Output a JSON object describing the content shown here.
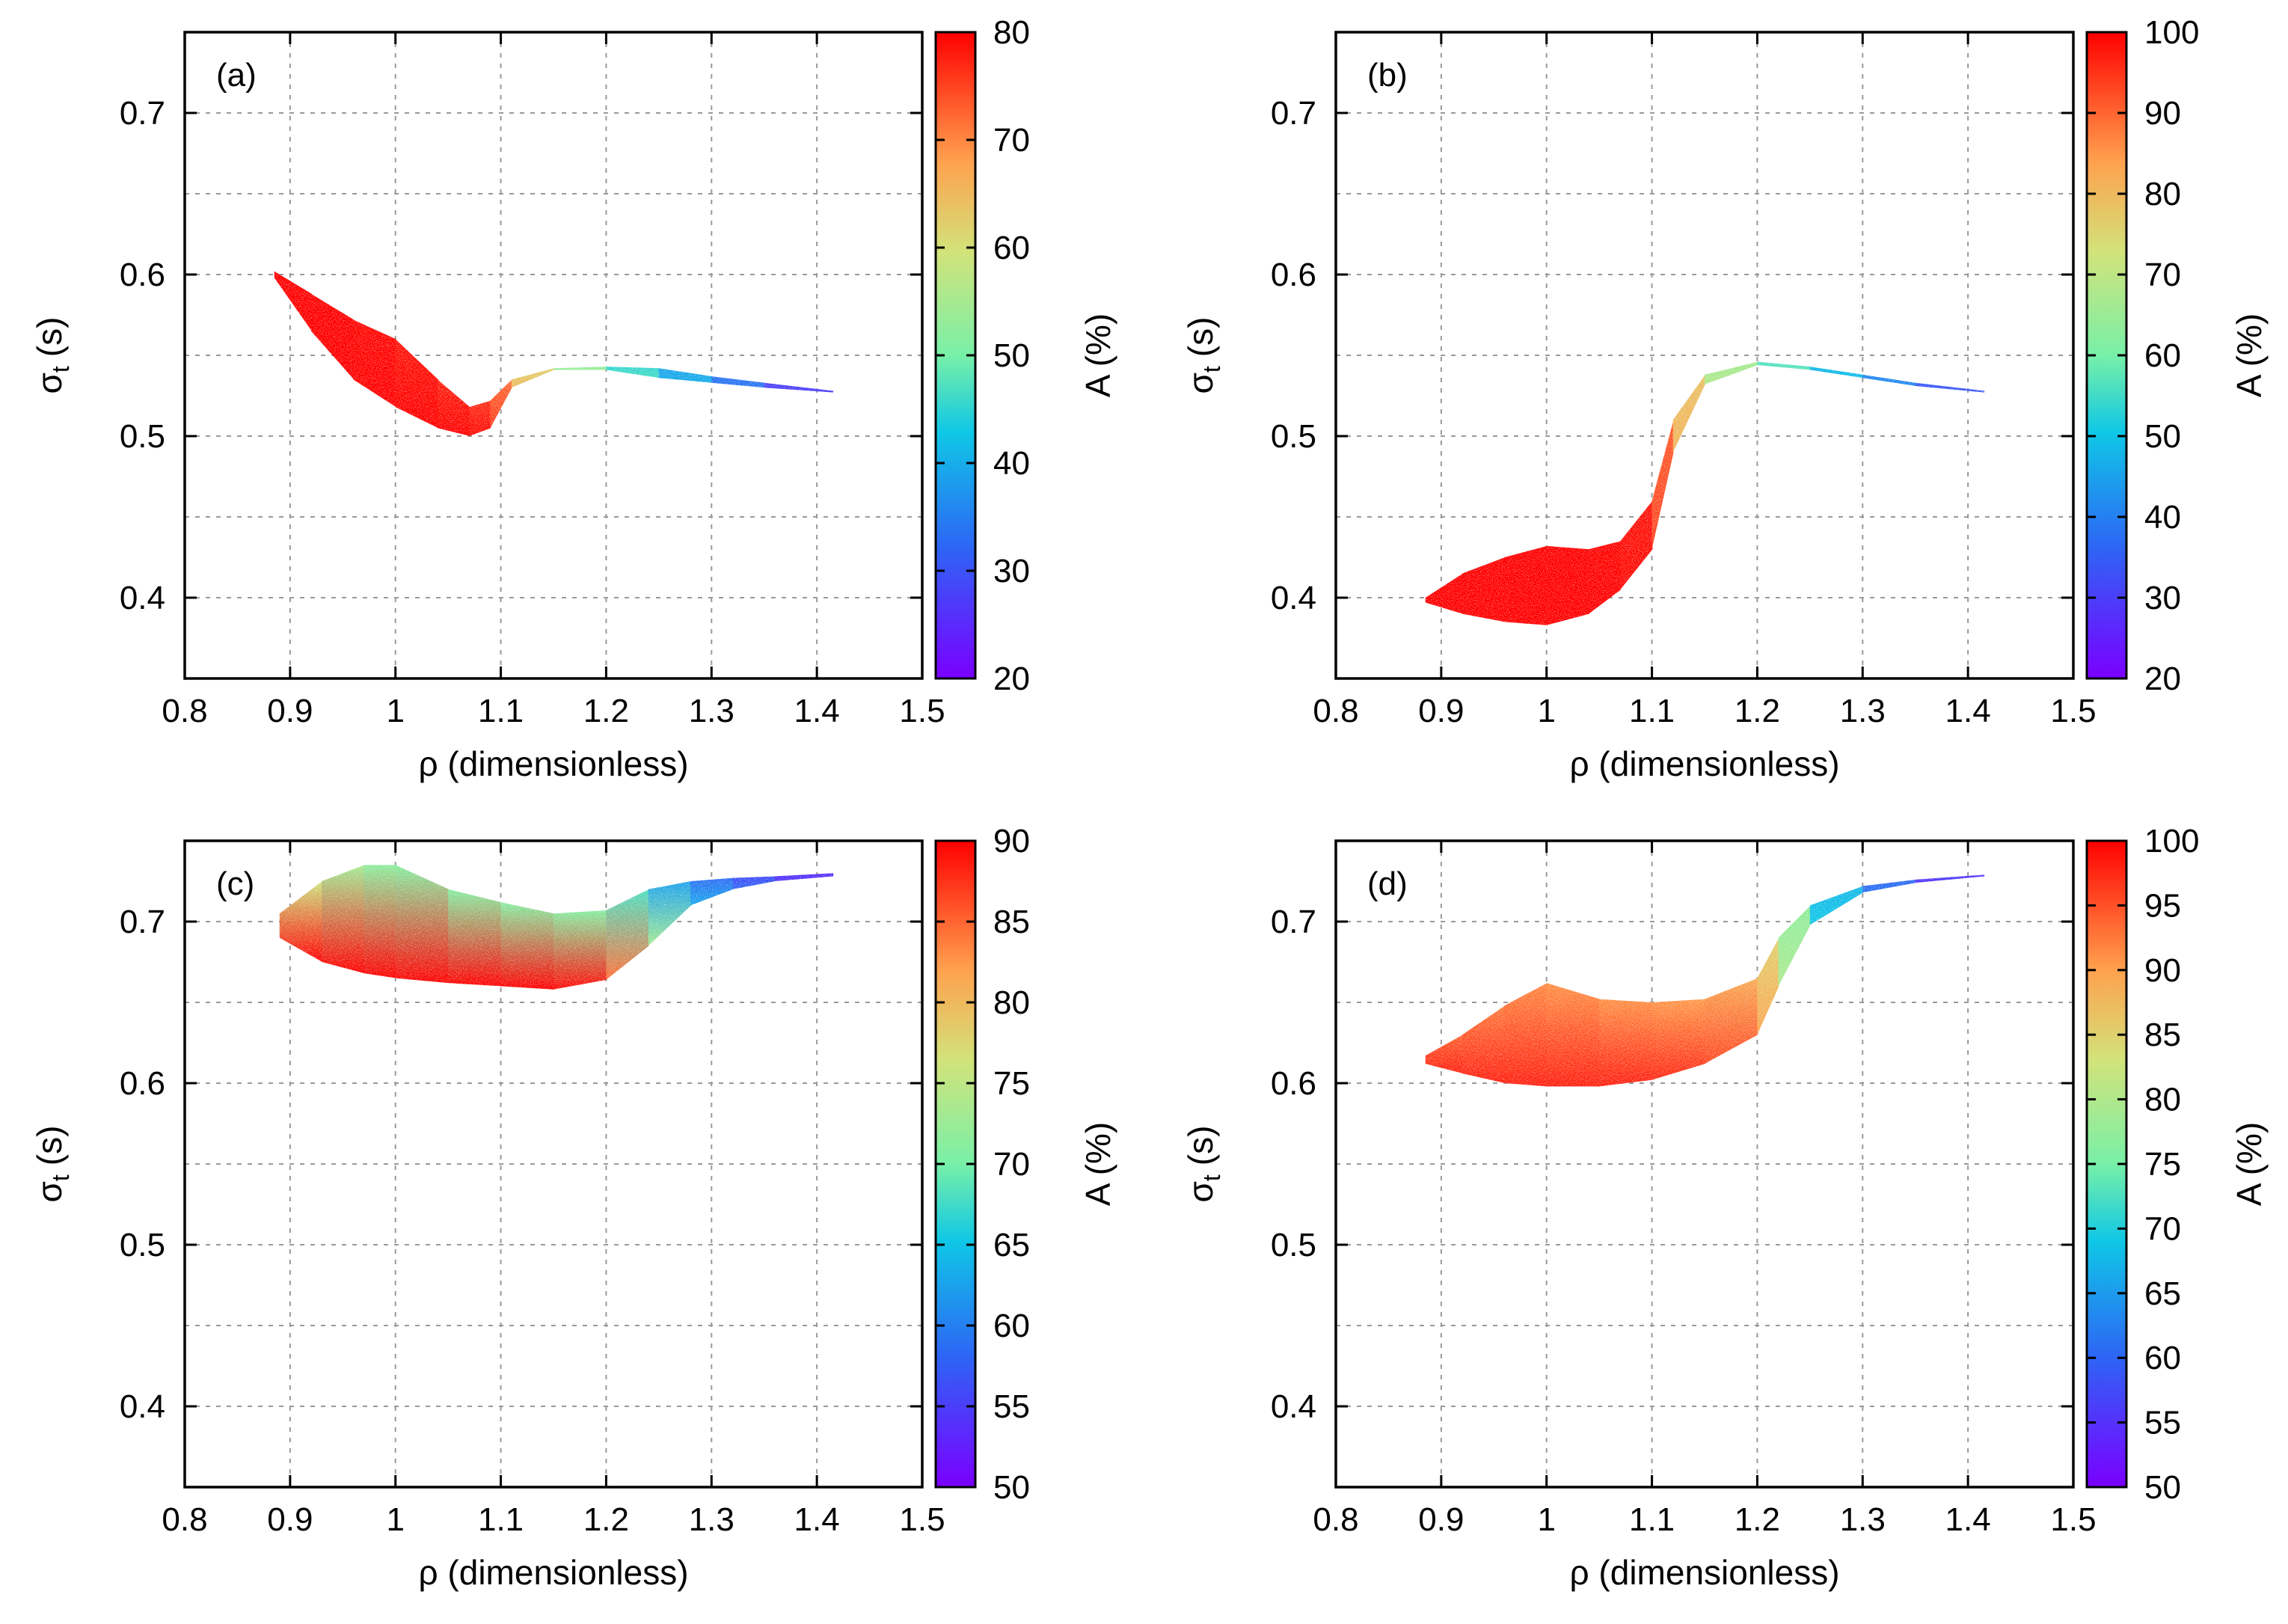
{
  "chart_data": [
    {
      "type": "scatter",
      "panel": "(a)",
      "xlabel": "ρ (dimensionless)",
      "ylabel_main": "σ",
      "ylabel_sub": "t",
      "ylabel_unit": "(s)",
      "xlim": [
        0.8,
        1.5
      ],
      "ylim": [
        0.35,
        0.75
      ],
      "xticks": [
        "0.8",
        "0.9",
        "1",
        "1.1",
        "1.2",
        "1.3",
        "1.4",
        "1.5"
      ],
      "yticks": [
        "0.4",
        "0.5",
        "0.6",
        "0.7"
      ],
      "colorbar": {
        "label": "A (%)",
        "range": [
          20,
          80
        ],
        "ticks": [
          "20",
          "30",
          "40",
          "50",
          "60",
          "70",
          "80"
        ]
      },
      "band": {
        "rho": [
          0.885,
          0.92,
          0.96,
          1.0,
          1.04,
          1.07,
          1.09,
          1.11,
          1.15,
          1.2,
          1.25,
          1.3,
          1.35,
          1.415
        ],
        "upper": [
          0.602,
          0.588,
          0.572,
          0.56,
          0.535,
          0.518,
          0.522,
          0.535,
          0.542,
          0.543,
          0.542,
          0.537,
          0.533,
          0.528
        ],
        "lower": [
          0.598,
          0.565,
          0.535,
          0.518,
          0.505,
          0.5,
          0.505,
          0.53,
          0.541,
          0.541,
          0.536,
          0.533,
          0.53,
          0.527
        ],
        "a_top": [
          80,
          80,
          80,
          79,
          78,
          77,
          76,
          68,
          56,
          49,
          42,
          36,
          31,
          24
        ],
        "a_bottom": [
          80,
          80,
          80,
          80,
          80,
          80,
          79,
          72,
          58,
          50,
          43,
          37,
          31,
          24
        ]
      }
    },
    {
      "type": "scatter",
      "panel": "(b)",
      "xlabel": "ρ (dimensionless)",
      "ylabel_main": "σ",
      "ylabel_sub": "t",
      "ylabel_unit": "(s)",
      "xlim": [
        0.8,
        1.5
      ],
      "ylim": [
        0.35,
        0.75
      ],
      "xticks": [
        "0.8",
        "0.9",
        "1",
        "1.1",
        "1.2",
        "1.3",
        "1.4",
        "1.5"
      ],
      "yticks": [
        "0.4",
        "0.5",
        "0.6",
        "0.7"
      ],
      "colorbar": {
        "label": "A (%)",
        "range": [
          20,
          100
        ],
        "ticks": [
          "20",
          "30",
          "40",
          "50",
          "60",
          "70",
          "80",
          "90",
          "100"
        ]
      },
      "band": {
        "rho": [
          0.885,
          0.92,
          0.96,
          1.0,
          1.04,
          1.07,
          1.1,
          1.12,
          1.15,
          1.2,
          1.25,
          1.3,
          1.35,
          1.415
        ],
        "upper": [
          0.4,
          0.415,
          0.425,
          0.432,
          0.43,
          0.435,
          0.46,
          0.51,
          0.538,
          0.546,
          0.543,
          0.538,
          0.533,
          0.528
        ],
        "lower": [
          0.397,
          0.39,
          0.385,
          0.383,
          0.39,
          0.405,
          0.43,
          0.49,
          0.532,
          0.544,
          0.541,
          0.536,
          0.531,
          0.527
        ],
        "a_top": [
          100,
          100,
          100,
          100,
          100,
          99,
          97,
          85,
          72,
          60,
          52,
          44,
          38,
          30
        ],
        "a_bottom": [
          100,
          100,
          100,
          100,
          100,
          100,
          98,
          88,
          74,
          62,
          53,
          45,
          38,
          30
        ]
      }
    },
    {
      "type": "scatter",
      "panel": "(c)",
      "xlabel": "ρ (dimensionless)",
      "ylabel_main": "σ",
      "ylabel_sub": "t",
      "ylabel_unit": "(s)",
      "xlim": [
        0.8,
        1.5
      ],
      "ylim": [
        0.35,
        0.75
      ],
      "xticks": [
        "0.8",
        "0.9",
        "1",
        "1.1",
        "1.2",
        "1.3",
        "1.4",
        "1.5"
      ],
      "yticks": [
        "0.4",
        "0.5",
        "0.6",
        "0.7"
      ],
      "colorbar": {
        "label": "A (%)",
        "range": [
          50,
          90
        ],
        "ticks": [
          "50",
          "55",
          "60",
          "65",
          "70",
          "75",
          "80",
          "85",
          "90"
        ]
      },
      "band": {
        "rho": [
          0.89,
          0.93,
          0.97,
          1.0,
          1.05,
          1.1,
          1.15,
          1.2,
          1.24,
          1.28,
          1.32,
          1.36,
          1.415
        ],
        "upper": [
          0.705,
          0.725,
          0.735,
          0.735,
          0.72,
          0.712,
          0.705,
          0.707,
          0.72,
          0.725,
          0.727,
          0.728,
          0.73
        ],
        "lower": [
          0.69,
          0.675,
          0.668,
          0.665,
          0.662,
          0.66,
          0.658,
          0.664,
          0.685,
          0.71,
          0.72,
          0.725,
          0.728
        ],
        "a_top": [
          78,
          74,
          72,
          71,
          71,
          71,
          71,
          71,
          65,
          60,
          57,
          55,
          52
        ],
        "a_bottom": [
          90,
          90,
          90,
          90,
          90,
          90,
          90,
          89,
          80,
          66,
          60,
          56,
          53
        ]
      }
    },
    {
      "type": "scatter",
      "panel": "(d)",
      "xlabel": "ρ (dimensionless)",
      "ylabel_main": "σ",
      "ylabel_sub": "t",
      "ylabel_unit": "(s)",
      "xlim": [
        0.8,
        1.5
      ],
      "ylim": [
        0.35,
        0.75
      ],
      "xticks": [
        "0.8",
        "0.9",
        "1",
        "1.1",
        "1.2",
        "1.3",
        "1.4",
        "1.5"
      ],
      "yticks": [
        "0.4",
        "0.5",
        "0.6",
        "0.7"
      ],
      "colorbar": {
        "label": "A (%)",
        "range": [
          50,
          100
        ],
        "ticks": [
          "50",
          "55",
          "60",
          "65",
          "70",
          "75",
          "80",
          "85",
          "90",
          "95",
          "100"
        ]
      },
      "band": {
        "rho": [
          0.885,
          0.92,
          0.96,
          1.0,
          1.05,
          1.1,
          1.15,
          1.2,
          1.22,
          1.25,
          1.3,
          1.35,
          1.415
        ],
        "upper": [
          0.617,
          0.63,
          0.648,
          0.662,
          0.652,
          0.65,
          0.652,
          0.665,
          0.69,
          0.71,
          0.722,
          0.726,
          0.729
        ],
        "lower": [
          0.612,
          0.606,
          0.6,
          0.598,
          0.598,
          0.602,
          0.612,
          0.63,
          0.66,
          0.698,
          0.718,
          0.724,
          0.728
        ],
        "a_top": [
          95,
          93,
          92,
          91,
          91,
          91,
          90,
          88,
          82,
          72,
          63,
          58,
          53
        ],
        "a_bottom": [
          98,
          98,
          98,
          98,
          98,
          98,
          97,
          94,
          85,
          74,
          64,
          58,
          53
        ]
      }
    }
  ]
}
